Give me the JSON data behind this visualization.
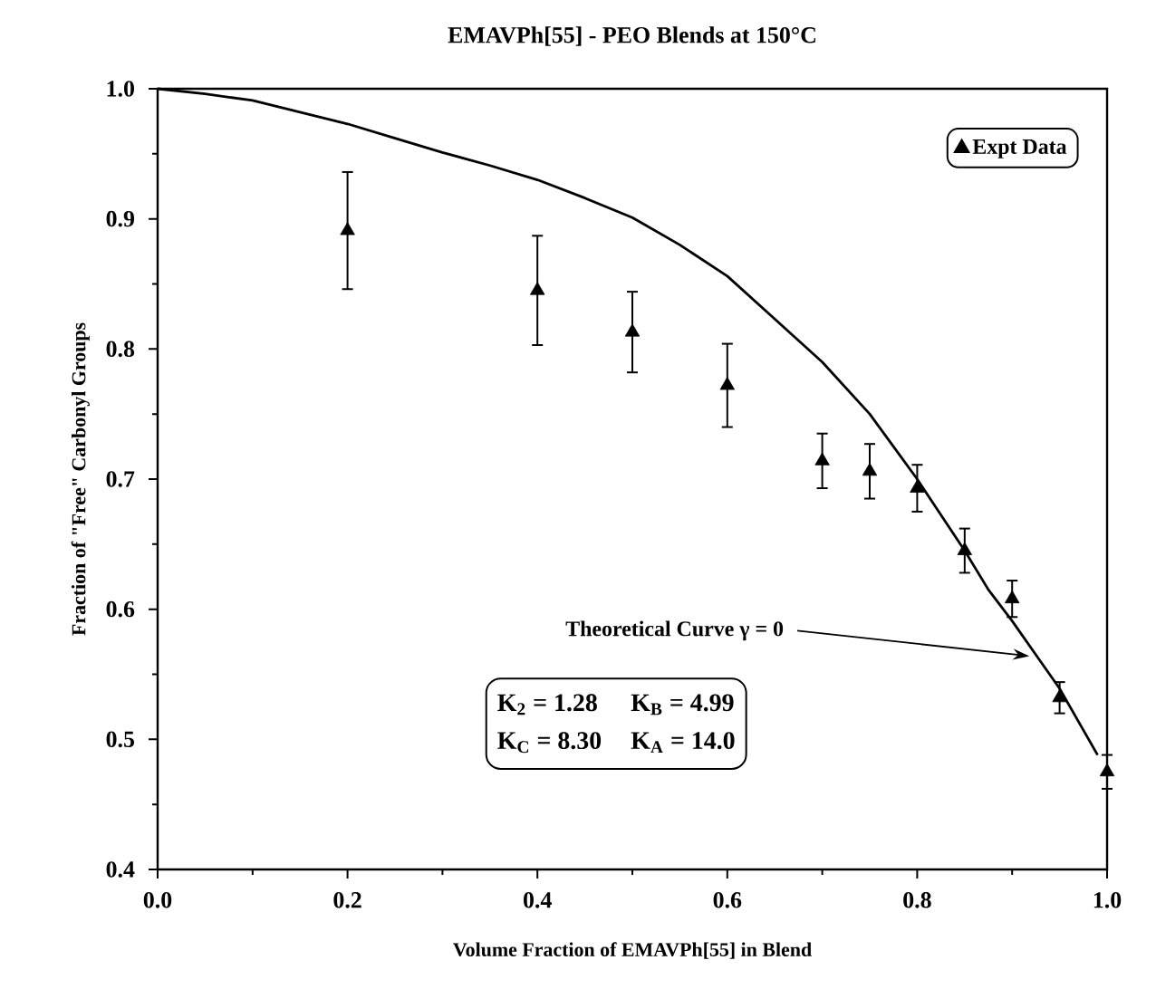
{
  "chart_data": {
    "type": "scatter",
    "title": "EMAVPh[55] - PEO Blends at 150°C",
    "xlabel": "Volume Fraction of EMAVPh[55] in Blend",
    "ylabel": "Fraction of \"Free\" Carbonyl Groups",
    "xlim": [
      0,
      1
    ],
    "ylim": [
      0.4,
      1.0
    ],
    "xticks": [
      {
        "value": 0,
        "label": "0.0"
      },
      {
        "value": 0.2,
        "label": "0.2"
      },
      {
        "value": 0.4,
        "label": "0.4"
      },
      {
        "value": 0.6,
        "label": "0.6"
      },
      {
        "value": 0.8,
        "label": "0.8"
      },
      {
        "value": 1.0,
        "label": "1.0"
      }
    ],
    "yticks": [
      {
        "value": 0.4,
        "label": "0.4"
      },
      {
        "value": 0.5,
        "label": "0.5"
      },
      {
        "value": 0.6,
        "label": "0.6"
      },
      {
        "value": 0.7,
        "label": "0.7"
      },
      {
        "value": 0.8,
        "label": "0.8"
      },
      {
        "value": 0.9,
        "label": "0.9"
      },
      {
        "value": 1.0,
        "label": "1.0"
      }
    ],
    "legend": "top right",
    "series": [
      {
        "name": "Expt Data",
        "marker": "triangle",
        "color": "#000000",
        "x": [
          0.2,
          0.4,
          0.5,
          0.6,
          0.7,
          0.75,
          0.8,
          0.85,
          0.9,
          0.95,
          1.0
        ],
        "values": [
          0.891,
          0.845,
          0.813,
          0.772,
          0.714,
          0.706,
          0.693,
          0.645,
          0.608,
          0.532,
          0.475
        ],
        "errors": [
          0.045,
          0.042,
          0.031,
          0.032,
          0.021,
          0.021,
          0.018,
          0.017,
          0.014,
          0.012,
          0.013
        ]
      },
      {
        "type": "line",
        "color": "#000000",
        "line_style": "solid",
        "x": [
          0,
          0.05,
          0.1,
          0.15,
          0.2,
          0.25,
          0.3,
          0.35,
          0.4,
          0.45,
          0.5,
          0.55,
          0.6,
          0.65,
          0.7,
          0.75,
          0.8,
          0.85,
          0.875,
          0.9,
          0.925,
          0.95,
          0.99
        ],
        "values": [
          1.0,
          0.996,
          0.991,
          0.982,
          0.973,
          0.962,
          0.951,
          0.941,
          0.93,
          0.916,
          0.901,
          0.88,
          0.856,
          0.823,
          0.79,
          0.75,
          0.7,
          0.645,
          0.615,
          0.591,
          0.565,
          0.539,
          0.488
        ]
      }
    ],
    "annotations": [
      {
        "text": "Theoretical Curve  γ = 0",
        "x": 0.918,
        "y": 0.564
      },
      "K$_{2}$ = 1.28",
      "K$_{B}$ = 4.99",
      "K$_{C}$ = 8.30",
      "K$_{A}$ = 14.0"
    ]
  }
}
